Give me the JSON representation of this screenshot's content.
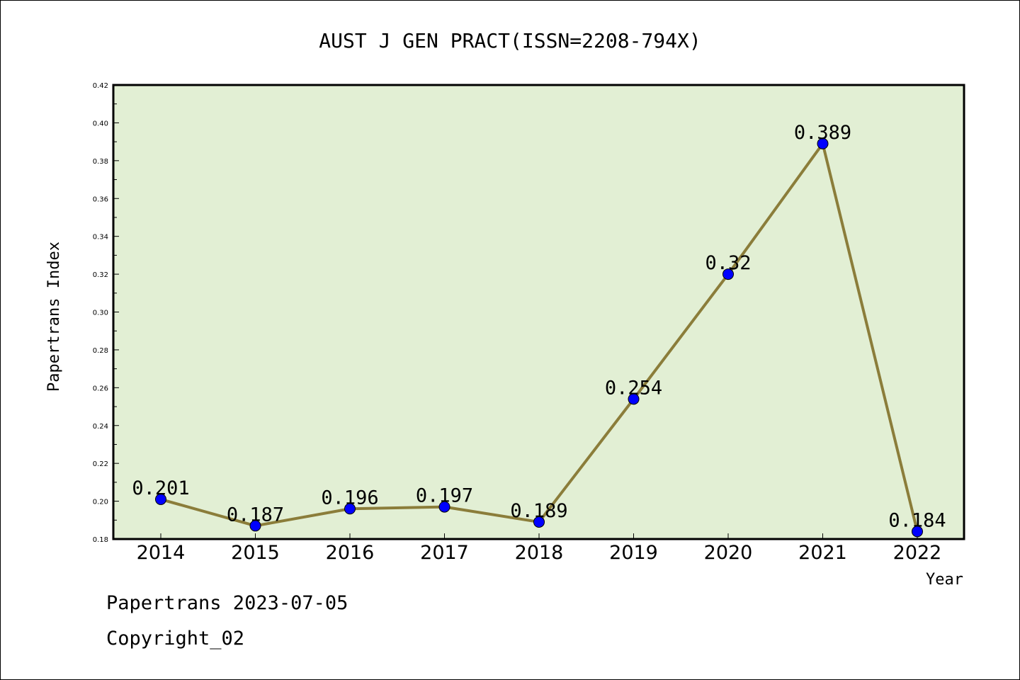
{
  "chart_data": {
    "type": "line",
    "title": "AUST J GEN PRACT(ISSN=2208-794X)",
    "xlabel": "Year",
    "ylabel": "Papertrans Index",
    "categories": [
      "2014",
      "2015",
      "2016",
      "2017",
      "2018",
      "2019",
      "2020",
      "2021",
      "2022"
    ],
    "values": [
      0.201,
      0.187,
      0.196,
      0.197,
      0.189,
      0.254,
      0.32,
      0.389,
      0.184
    ],
    "data_labels": [
      "0.201",
      "0.187",
      "0.196",
      "0.197",
      "0.189",
      "0.254",
      "0.32",
      "0.389",
      "0.184"
    ],
    "ylim": [
      0.18,
      0.42
    ],
    "yticks": [
      0.18,
      0.2,
      0.22,
      0.24,
      0.26,
      0.28,
      0.3,
      0.32,
      0.34,
      0.36,
      0.38,
      0.4,
      0.42
    ],
    "ytick_labels": [
      "0.18",
      "0.20",
      "0.22",
      "0.24",
      "0.26",
      "0.28",
      "0.30",
      "0.32",
      "0.34",
      "0.36",
      "0.38",
      "0.40",
      "0.42"
    ],
    "grid": false,
    "legend": "none",
    "colors": {
      "plot_background": "#e2efd4",
      "line": "#8b7d3a",
      "marker": "#0000ff",
      "axes": "#000000"
    }
  },
  "footer": {
    "date_line": "Papertrans 2023-07-05",
    "copyright": "Copyright_02"
  }
}
